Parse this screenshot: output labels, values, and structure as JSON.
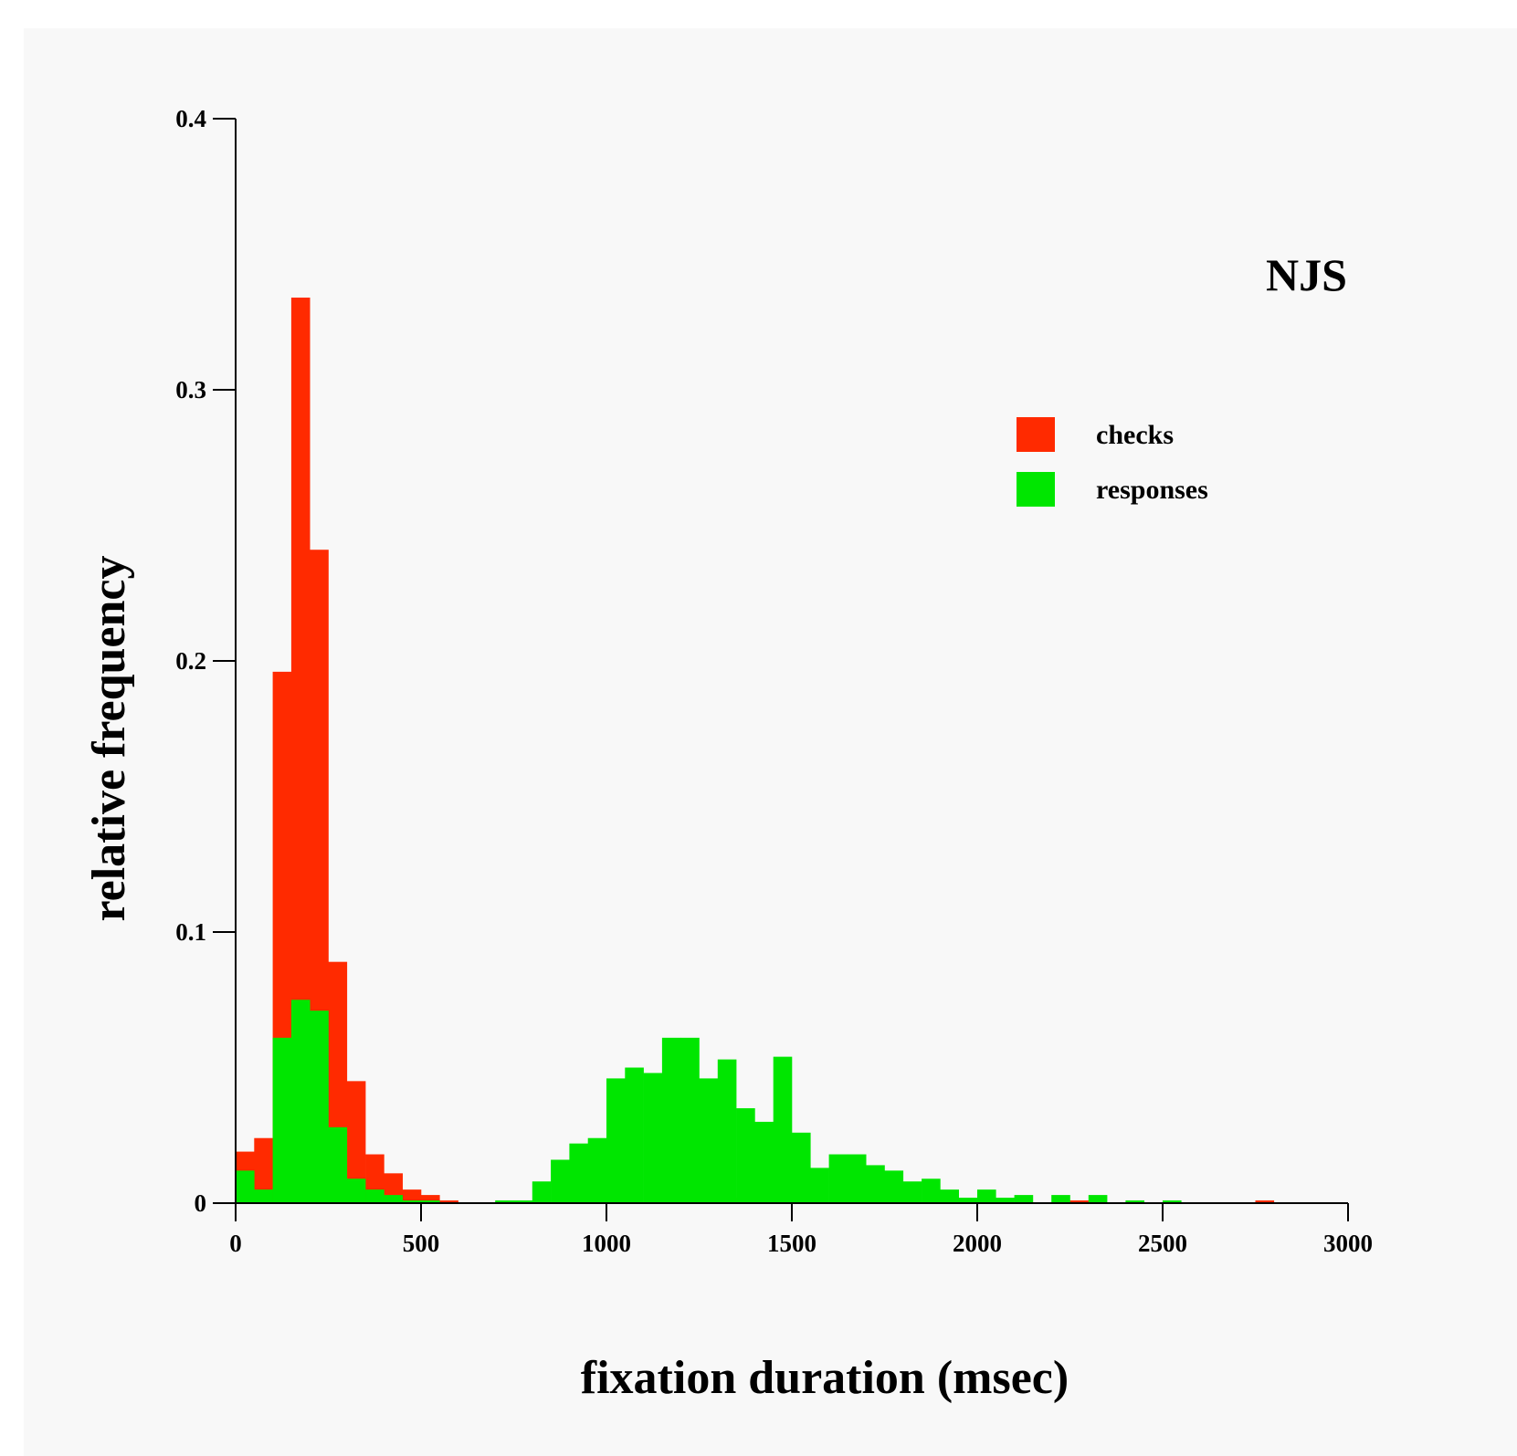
{
  "chart_data": {
    "type": "bar",
    "subtitle": "NJS",
    "xlabel": "fixation duration (msec)",
    "ylabel": "relative frequency",
    "xlim": [
      0,
      3000
    ],
    "ylim": [
      0,
      0.4
    ],
    "x_ticks": [
      "0",
      "500",
      "1000",
      "1500",
      "2000",
      "2500",
      "3000"
    ],
    "y_ticks": [
      "0",
      "0.1",
      "0.2",
      "0.3",
      "0.4"
    ],
    "bin_width": 50,
    "grid": false,
    "legend_position": "upper-right",
    "colors": {
      "checks": "#ff2a00",
      "responses": "#00e600",
      "axis": "#000000",
      "background": "#f8f8f8"
    },
    "series": [
      {
        "name": "checks",
        "bin_starts": [
          0,
          50,
          100,
          150,
          200,
          250,
          300,
          350,
          400,
          450,
          500,
          550,
          1300,
          1950,
          2250,
          2750
        ],
        "values": [
          0.019,
          0.024,
          0.196,
          0.334,
          0.241,
          0.089,
          0.045,
          0.018,
          0.011,
          0.005,
          0.003,
          0.001,
          0.002,
          0.001,
          0.001,
          0.001
        ]
      },
      {
        "name": "responses",
        "bin_starts": [
          0,
          50,
          100,
          150,
          200,
          250,
          300,
          350,
          400,
          450,
          500,
          700,
          750,
          800,
          850,
          900,
          950,
          1000,
          1050,
          1100,
          1150,
          1200,
          1250,
          1300,
          1350,
          1400,
          1450,
          1500,
          1550,
          1600,
          1650,
          1700,
          1750,
          1800,
          1850,
          1900,
          1950,
          2000,
          2050,
          2100,
          2200,
          2300,
          2400,
          2500
        ],
        "values": [
          0.012,
          0.005,
          0.061,
          0.075,
          0.071,
          0.028,
          0.009,
          0.005,
          0.003,
          0.001,
          0.001,
          0.001,
          0.001,
          0.008,
          0.016,
          0.022,
          0.024,
          0.046,
          0.05,
          0.048,
          0.061,
          0.061,
          0.046,
          0.053,
          0.035,
          0.03,
          0.054,
          0.026,
          0.013,
          0.018,
          0.018,
          0.014,
          0.012,
          0.008,
          0.009,
          0.005,
          0.002,
          0.005,
          0.002,
          0.003,
          0.003,
          0.003,
          0.001,
          0.001
        ]
      }
    ]
  }
}
